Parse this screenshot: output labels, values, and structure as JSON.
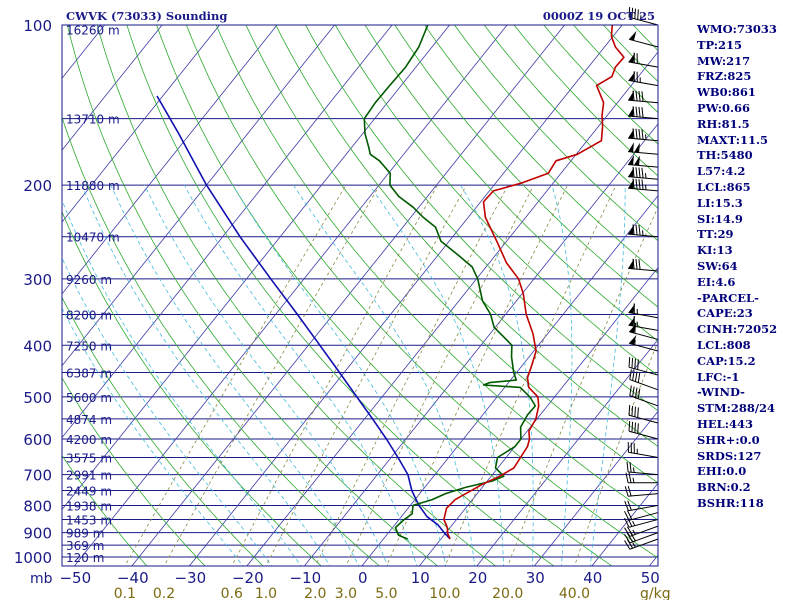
{
  "chart_data": {
    "type": "skew-t",
    "title": "CWVK (73033) Sounding",
    "valid_time": "0000Z 19 OCT 25",
    "x_axis_label": "mb",
    "mixing_ratio_unit": "g/kg",
    "pressure_levels": [
      100,
      200,
      300,
      400,
      500,
      600,
      700,
      800,
      900,
      1000
    ],
    "temperature_ticks": [
      -50,
      -40,
      -30,
      -20,
      -10,
      0,
      10,
      20,
      30,
      40,
      50
    ],
    "temperature_tick_labels": [
      "−50",
      "−40",
      "−30",
      "−20",
      "−10",
      "0",
      "10",
      "20",
      "30",
      "40",
      "50"
    ],
    "mixing_ratio_labels": [
      "0.1",
      "0.2",
      "0.6",
      "1.0",
      "2.0",
      "3.0",
      "5.0",
      "10.0",
      "20.0",
      "40.0"
    ],
    "mixing_ratio_values": [
      0.1,
      0.2,
      0.6,
      1.0,
      2.0,
      3.0,
      5.0,
      10.0,
      20.0,
      40.0
    ],
    "height_labels": [
      {
        "p": 102,
        "text": "16260 m"
      },
      {
        "p": 150,
        "text": "13710 m"
      },
      {
        "p": 200,
        "text": "11880 m"
      },
      {
        "p": 250,
        "text": "10470 m"
      },
      {
        "p": 300,
        "text": "9260 m"
      },
      {
        "p": 350,
        "text": "8200 m"
      },
      {
        "p": 400,
        "text": "7250 m"
      },
      {
        "p": 450,
        "text": "6387 m"
      },
      {
        "p": 500,
        "text": "5600 m"
      },
      {
        "p": 550,
        "text": "4874 m"
      },
      {
        "p": 600,
        "text": "4200 m"
      },
      {
        "p": 650,
        "text": "3575 m"
      },
      {
        "p": 700,
        "text": "2991 m"
      },
      {
        "p": 750,
        "text": "2449 m"
      },
      {
        "p": 800,
        "text": "1938 m"
      },
      {
        "p": 850,
        "text": "1453 m"
      },
      {
        "p": 900,
        "text": "989 m"
      },
      {
        "p": 950,
        "text": "369 m"
      },
      {
        "p": 1000,
        "text": "120 m"
      }
    ],
    "temperature_profile": [
      [
        925,
        11.6
      ],
      [
        905,
        10.5
      ],
      [
        880,
        9.5
      ],
      [
        850,
        7.8
      ],
      [
        810,
        6.7
      ],
      [
        780,
        7.0
      ],
      [
        730,
        9.6
      ],
      [
        705,
        11.5
      ],
      [
        680,
        12.8
      ],
      [
        650,
        12.5
      ],
      [
        620,
        12.2
      ],
      [
        600,
        11.5
      ],
      [
        580,
        10.3
      ],
      [
        550,
        9.8
      ],
      [
        520,
        8.5
      ],
      [
        500,
        7.1
      ],
      [
        480,
        4.2
      ],
      [
        460,
        2.6
      ],
      [
        440,
        1.8
      ],
      [
        410,
        0.4
      ],
      [
        380,
        -2.6
      ],
      [
        350,
        -6.4
      ],
      [
        320,
        -9.8
      ],
      [
        300,
        -12.7
      ],
      [
        280,
        -17.0
      ],
      [
        255,
        -21.7
      ],
      [
        230,
        -27.0
      ],
      [
        215,
        -29.5
      ],
      [
        205,
        -29.3
      ],
      [
        198,
        -25.4
      ],
      [
        190,
        -22.2
      ],
      [
        180,
        -22.6
      ],
      [
        175,
        -19.8
      ],
      [
        165,
        -17.5
      ],
      [
        155,
        -19.3
      ],
      [
        148,
        -20.9
      ],
      [
        140,
        -22.4
      ],
      [
        130,
        -26.0
      ],
      [
        125,
        -24.6
      ],
      [
        120,
        -25.3
      ],
      [
        115,
        -25.2
      ],
      [
        110,
        -28.1
      ],
      [
        105,
        -30.3
      ],
      [
        100,
        -31.7
      ]
    ],
    "dewpoint_profile": [
      [
        925,
        4.2
      ],
      [
        910,
        2.1
      ],
      [
        880,
        0.5
      ],
      [
        850,
        0.9
      ],
      [
        830,
        1.5
      ],
      [
        800,
        0.5
      ],
      [
        780,
        3.0
      ],
      [
        760,
        4.5
      ],
      [
        740,
        7.1
      ],
      [
        720,
        10.8
      ],
      [
        705,
        12.2
      ],
      [
        680,
        9.6
      ],
      [
        650,
        8.5
      ],
      [
        620,
        10.0
      ],
      [
        600,
        10.0
      ],
      [
        570,
        8.3
      ],
      [
        540,
        7.8
      ],
      [
        520,
        7.9
      ],
      [
        500,
        5.7
      ],
      [
        480,
        2.7
      ],
      [
        475,
        -4.0
      ],
      [
        470,
        -3.3
      ],
      [
        465,
        1.0
      ],
      [
        450,
        -0.5
      ],
      [
        420,
        -3.1
      ],
      [
        400,
        -4.6
      ],
      [
        390,
        -6.4
      ],
      [
        370,
        -10.2
      ],
      [
        350,
        -12.6
      ],
      [
        330,
        -15.9
      ],
      [
        300,
        -19.8
      ],
      [
        285,
        -22.4
      ],
      [
        270,
        -26.7
      ],
      [
        255,
        -31.4
      ],
      [
        240,
        -34.3
      ],
      [
        230,
        -37.8
      ],
      [
        220,
        -41.0
      ],
      [
        210,
        -45.0
      ],
      [
        200,
        -48.1
      ],
      [
        190,
        -49.7
      ],
      [
        180,
        -53.3
      ],
      [
        175,
        -55.8
      ],
      [
        170,
        -57.0
      ],
      [
        160,
        -59.6
      ],
      [
        150,
        -61.8
      ],
      [
        140,
        -62.1
      ],
      [
        130,
        -62.0
      ],
      [
        120,
        -61.8
      ],
      [
        110,
        -62.3
      ],
      [
        100,
        -63.8
      ]
    ],
    "parcel_path": [
      [
        925,
        11.6
      ],
      [
        900,
        9.7
      ],
      [
        870,
        7.5
      ],
      [
        840,
        4.5
      ],
      [
        800,
        1.5
      ],
      [
        750,
        -1.8
      ],
      [
        700,
        -4.7
      ],
      [
        650,
        -8.8
      ],
      [
        600,
        -13.4
      ],
      [
        550,
        -18.6
      ],
      [
        500,
        -24.4
      ],
      [
        450,
        -30.8
      ],
      [
        400,
        -38.0
      ],
      [
        350,
        -46.2
      ],
      [
        300,
        -55.8
      ],
      [
        250,
        -67.0
      ],
      [
        200,
        -80.0
      ],
      [
        160,
        -92.0
      ],
      [
        136,
        -101.0
      ]
    ],
    "wind_barbs": [
      {
        "p": 925,
        "dir": 250,
        "spd": 25
      },
      {
        "p": 900,
        "dir": 250,
        "spd": 30
      },
      {
        "p": 875,
        "dir": 250,
        "spd": 25
      },
      {
        "p": 850,
        "dir": 255,
        "spd": 25
      },
      {
        "p": 825,
        "dir": 255,
        "spd": 20
      },
      {
        "p": 800,
        "dir": 260,
        "spd": 20
      },
      {
        "p": 760,
        "dir": 265,
        "spd": 20
      },
      {
        "p": 725,
        "dir": 270,
        "spd": 25
      },
      {
        "p": 700,
        "dir": 275,
        "spd": 25
      },
      {
        "p": 650,
        "dir": 280,
        "spd": 35
      },
      {
        "p": 600,
        "dir": 285,
        "spd": 40
      },
      {
        "p": 560,
        "dir": 285,
        "spd": 40
      },
      {
        "p": 520,
        "dir": 290,
        "spd": 40
      },
      {
        "p": 485,
        "dir": 290,
        "spd": 40
      },
      {
        "p": 455,
        "dir": 285,
        "spd": 40
      },
      {
        "p": 410,
        "dir": 285,
        "spd": 55
      },
      {
        "p": 390,
        "dir": 285,
        "spd": 60
      },
      {
        "p": 375,
        "dir": 280,
        "spd": 65
      },
      {
        "p": 355,
        "dir": 280,
        "spd": 65
      },
      {
        "p": 290,
        "dir": 275,
        "spd": 80
      },
      {
        "p": 250,
        "dir": 275,
        "spd": 85
      },
      {
        "p": 205,
        "dir": 275,
        "spd": 95
      },
      {
        "p": 195,
        "dir": 275,
        "spd": 95
      },
      {
        "p": 185,
        "dir": 275,
        "spd": 100
      },
      {
        "p": 175,
        "dir": 275,
        "spd": 100
      },
      {
        "p": 165,
        "dir": 275,
        "spd": 95
      },
      {
        "p": 150,
        "dir": 275,
        "spd": 90
      },
      {
        "p": 140,
        "dir": 275,
        "spd": 90
      },
      {
        "p": 130,
        "dir": 280,
        "spd": 75
      },
      {
        "p": 120,
        "dir": 280,
        "spd": 70
      },
      {
        "p": 110,
        "dir": 285,
        "spd": 50
      },
      {
        "p": 100,
        "dir": 285,
        "spd": 45
      }
    ],
    "line_colors": {
      "background": "#ffffff",
      "isobar": "#1a1a88",
      "isotherm": "#3a3aa8",
      "dry_adiabat": "#2faa2f",
      "moist_adiabat": "#44bbdd",
      "mixing_ratio": "#888844",
      "temperature": "#c00000",
      "dewpoint": "#005a00",
      "parcel": "#1010b0",
      "wind_barb": "#000000",
      "axis_label": "#1a1a88",
      "mixing_label": "#7a6a10",
      "index_text": "#00007a"
    }
  },
  "indices": [
    "WMO:73033",
    "TP:215",
    "MW:217",
    "FRZ:825",
    "WB0:861",
    "PW:0.66",
    "RH:81.5",
    "MAXT:11.5",
    "TH:5480",
    "L57:4.2",
    "LCL:865",
    "LI:15.3",
    "SI:14.9",
    "TT:29",
    "KI:13",
    "SW:64",
    "EI:4.6",
    "-PARCEL-",
    "CAPE:23",
    "CINH:72052",
    "LCL:808",
    "CAP:15.2",
    "LFC:-1",
    "-WIND-",
    "STM:288/24",
    "HEL:443",
    "SHR+:0.0",
    "SRDS:127",
    "EHI:0.0",
    "BRN:0.2",
    "BSHR:118"
  ]
}
